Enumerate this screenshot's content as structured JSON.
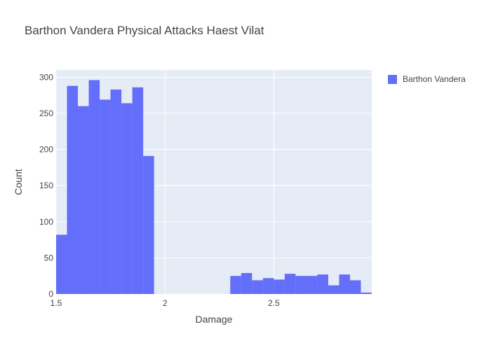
{
  "chart_data": {
    "type": "bar",
    "title": "Barthon Vandera Physical Attacks Haest Vilat",
    "xlabel": "Damage",
    "ylabel": "Count",
    "xlim": [
      1.5,
      2.95
    ],
    "ylim": [
      0,
      310
    ],
    "x_ticks": [
      1.5,
      2,
      2.5
    ],
    "x_tick_labels": [
      "1.5",
      "2",
      "2.5"
    ],
    "y_ticks": [
      0,
      50,
      100,
      150,
      200,
      250,
      300
    ],
    "y_tick_labels": [
      "0",
      "50",
      "100",
      "150",
      "200",
      "250",
      "300"
    ],
    "grid": true,
    "legend_position": "top-right",
    "bar_color": "#636efa",
    "plot_background": "#e5ecf6",
    "bin_width": 0.05,
    "series": [
      {
        "name": "Barthon Vandera",
        "bins": [
          {
            "x0": 1.5,
            "x1": 1.55,
            "value": 82
          },
          {
            "x0": 1.55,
            "x1": 1.6,
            "value": 288
          },
          {
            "x0": 1.6,
            "x1": 1.65,
            "value": 260
          },
          {
            "x0": 1.65,
            "x1": 1.7,
            "value": 296
          },
          {
            "x0": 1.7,
            "x1": 1.75,
            "value": 269
          },
          {
            "x0": 1.75,
            "x1": 1.8,
            "value": 283
          },
          {
            "x0": 1.8,
            "x1": 1.85,
            "value": 264
          },
          {
            "x0": 1.85,
            "x1": 1.9,
            "value": 286
          },
          {
            "x0": 1.9,
            "x1": 1.95,
            "value": 191
          },
          {
            "x0": 2.3,
            "x1": 2.35,
            "value": 25
          },
          {
            "x0": 2.35,
            "x1": 2.4,
            "value": 29
          },
          {
            "x0": 2.4,
            "x1": 2.45,
            "value": 19
          },
          {
            "x0": 2.45,
            "x1": 2.5,
            "value": 22
          },
          {
            "x0": 2.5,
            "x1": 2.55,
            "value": 20
          },
          {
            "x0": 2.55,
            "x1": 2.6,
            "value": 28
          },
          {
            "x0": 2.6,
            "x1": 2.65,
            "value": 25
          },
          {
            "x0": 2.65,
            "x1": 2.7,
            "value": 25
          },
          {
            "x0": 2.7,
            "x1": 2.75,
            "value": 27
          },
          {
            "x0": 2.75,
            "x1": 2.8,
            "value": 12
          },
          {
            "x0": 2.8,
            "x1": 2.85,
            "value": 27
          },
          {
            "x0": 2.85,
            "x1": 2.9,
            "value": 19
          },
          {
            "x0": 2.9,
            "x1": 2.95,
            "value": 2
          }
        ]
      }
    ]
  }
}
